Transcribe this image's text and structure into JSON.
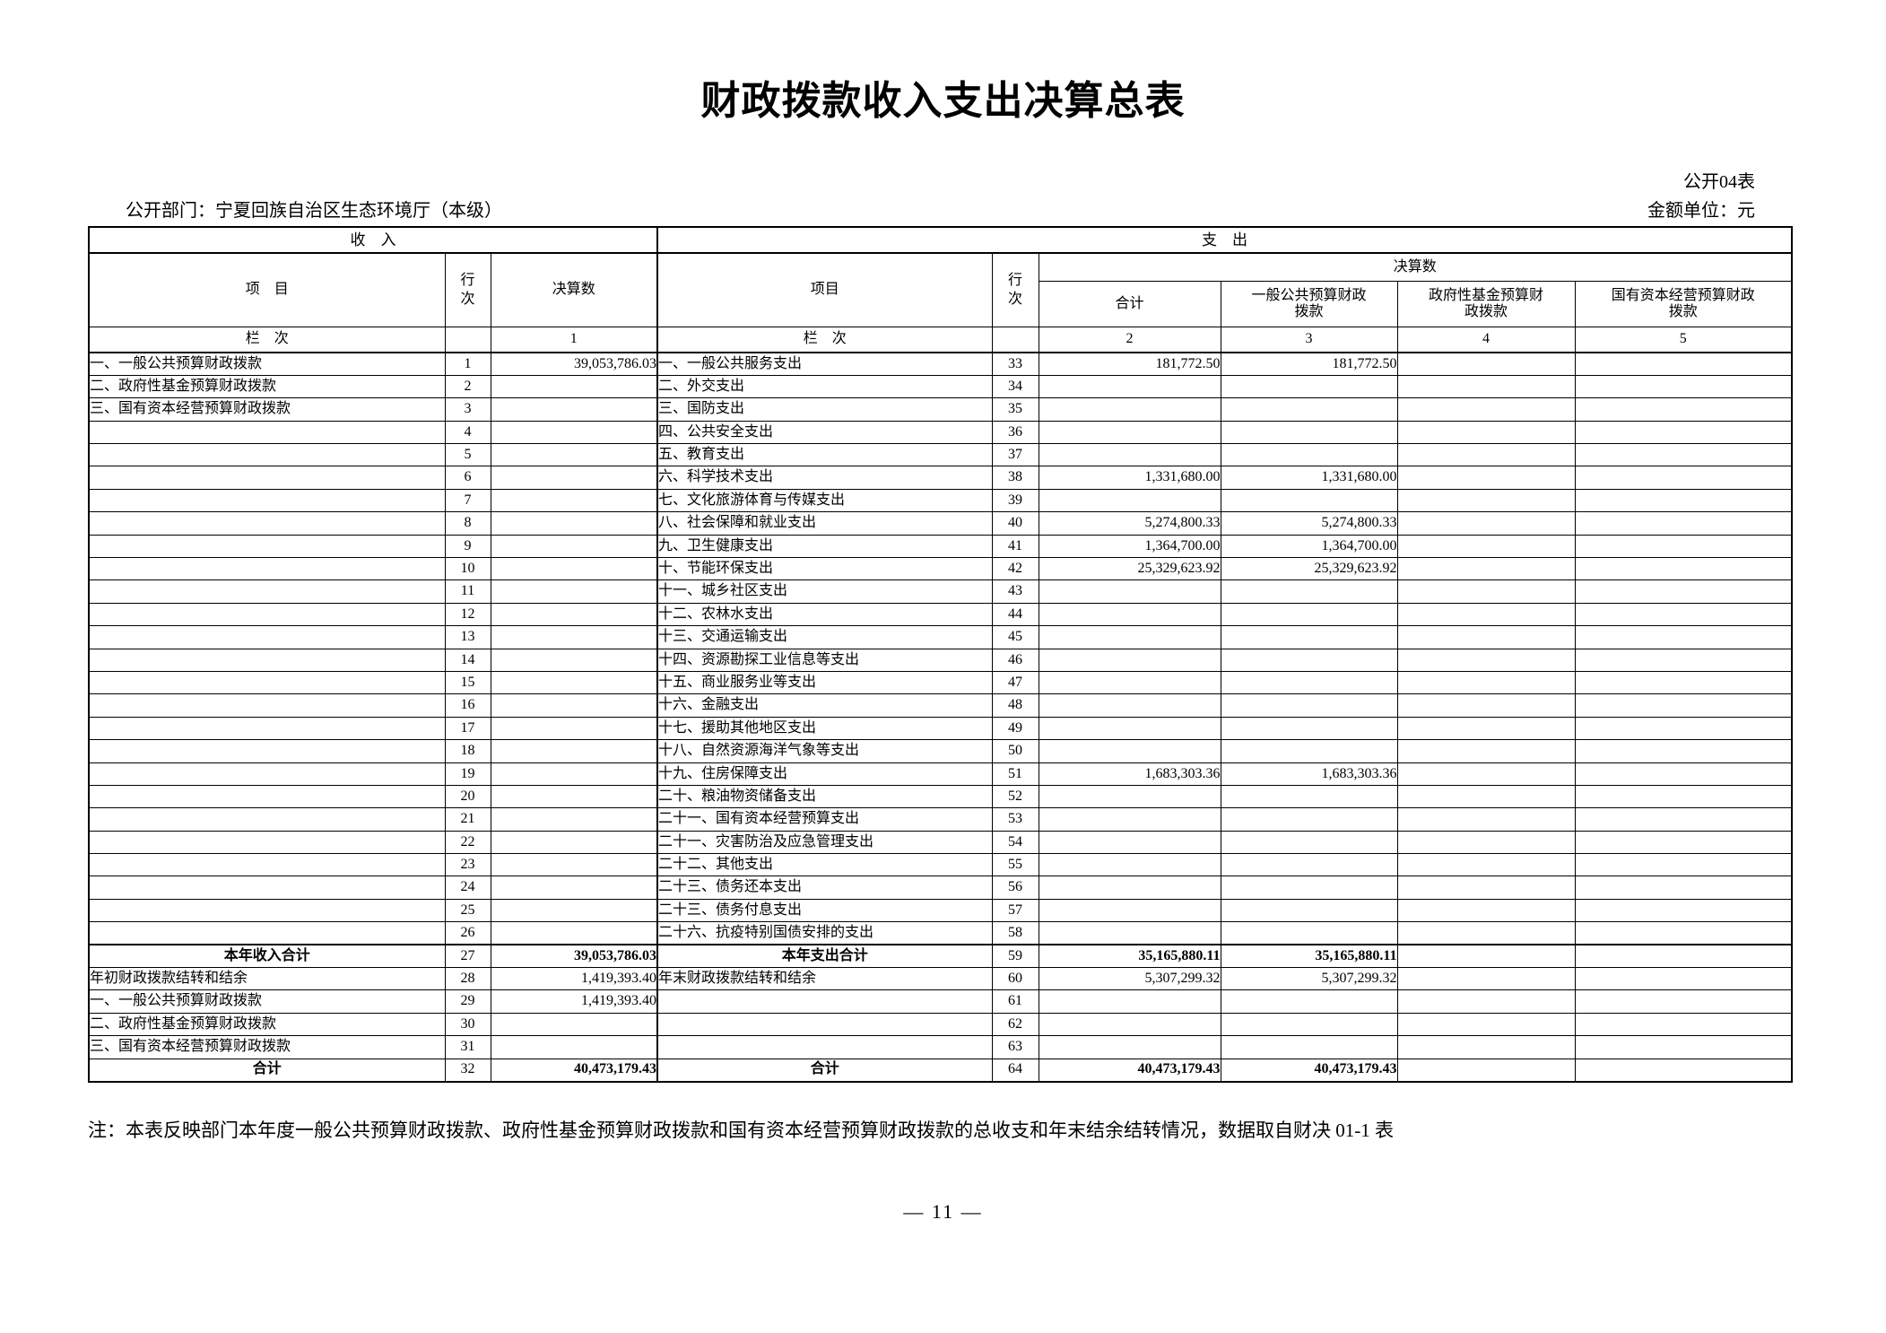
{
  "page": {
    "title": "财政拨款收入支出决算总表",
    "sheet_code": "公开04表",
    "department": "公开部门：宁夏回族自治区生态环境厅（本级）",
    "unit": "金额单位：元",
    "note": "注：本表反映部门本年度一般公共预算财政拨款、政府性基金预算财政拨款和国有资本经营预算财政拨款的总收支和年末结余结转情况，数据取自财决 01-1 表",
    "page_number": "— 11 —"
  },
  "table": {
    "income_header": "收　入",
    "expense_header": "支　出",
    "col_item_income": "项　目",
    "col_row_income": "行次",
    "col_amount_income": "决算数",
    "col_item_expense": "项目",
    "col_row_expense": "行次",
    "col_final_expense": "决算数",
    "col_total": "合计",
    "col_general": "一般公共预算财政\n拨款",
    "col_gov_fund": "政府性基金预算财\n政拨款",
    "col_state_capital": "国有资本经营预算财政\n拨款",
    "lanci": {
      "income_label": "栏　次",
      "income_col": "1",
      "expense_label": "栏　次",
      "expense_cols": [
        "2",
        "3",
        "4",
        "5"
      ]
    },
    "rows": [
      {
        "in": [
          "一、一般公共预算财政拨款",
          "1",
          "39,053,786.03"
        ],
        "out": [
          "一、一般公共服务支出",
          "33",
          "181,772.50",
          "181,772.50",
          "",
          ""
        ]
      },
      {
        "in": [
          "二、政府性基金预算财政拨款",
          "2",
          ""
        ],
        "out": [
          "二、外交支出",
          "34",
          "",
          "",
          "",
          ""
        ]
      },
      {
        "in": [
          "三、国有资本经营预算财政拨款",
          "3",
          ""
        ],
        "out": [
          "三、国防支出",
          "35",
          "",
          "",
          "",
          ""
        ]
      },
      {
        "in": [
          "",
          "4",
          ""
        ],
        "out": [
          "四、公共安全支出",
          "36",
          "",
          "",
          "",
          ""
        ]
      },
      {
        "in": [
          "",
          "5",
          ""
        ],
        "out": [
          "五、教育支出",
          "37",
          "",
          "",
          "",
          ""
        ]
      },
      {
        "in": [
          "",
          "6",
          ""
        ],
        "out": [
          "六、科学技术支出",
          "38",
          "1,331,680.00",
          "1,331,680.00",
          "",
          ""
        ]
      },
      {
        "in": [
          "",
          "7",
          ""
        ],
        "out": [
          "七、文化旅游体育与传媒支出",
          "39",
          "",
          "",
          "",
          ""
        ]
      },
      {
        "in": [
          "",
          "8",
          ""
        ],
        "out": [
          "八、社会保障和就业支出",
          "40",
          "5,274,800.33",
          "5,274,800.33",
          "",
          ""
        ]
      },
      {
        "in": [
          "",
          "9",
          ""
        ],
        "out": [
          "九、卫生健康支出",
          "41",
          "1,364,700.00",
          "1,364,700.00",
          "",
          ""
        ]
      },
      {
        "in": [
          "",
          "10",
          ""
        ],
        "out": [
          "十、节能环保支出",
          "42",
          "25,329,623.92",
          "25,329,623.92",
          "",
          ""
        ]
      },
      {
        "in": [
          "",
          "11",
          ""
        ],
        "out": [
          "十一、城乡社区支出",
          "43",
          "",
          "",
          "",
          ""
        ]
      },
      {
        "in": [
          "",
          "12",
          ""
        ],
        "out": [
          "十二、农林水支出",
          "44",
          "",
          "",
          "",
          ""
        ]
      },
      {
        "in": [
          "",
          "13",
          ""
        ],
        "out": [
          "十三、交通运输支出",
          "45",
          "",
          "",
          "",
          ""
        ]
      },
      {
        "in": [
          "",
          "14",
          ""
        ],
        "out": [
          "十四、资源勘探工业信息等支出",
          "46",
          "",
          "",
          "",
          ""
        ]
      },
      {
        "in": [
          "",
          "15",
          ""
        ],
        "out": [
          "十五、商业服务业等支出",
          "47",
          "",
          "",
          "",
          ""
        ]
      },
      {
        "in": [
          "",
          "16",
          ""
        ],
        "out": [
          "十六、金融支出",
          "48",
          "",
          "",
          "",
          ""
        ]
      },
      {
        "in": [
          "",
          "17",
          ""
        ],
        "out": [
          "十七、援助其他地区支出",
          "49",
          "",
          "",
          "",
          ""
        ]
      },
      {
        "in": [
          "",
          "18",
          ""
        ],
        "out": [
          "十八、自然资源海洋气象等支出",
          "50",
          "",
          "",
          "",
          ""
        ]
      },
      {
        "in": [
          "",
          "19",
          ""
        ],
        "out": [
          "十九、住房保障支出",
          "51",
          "1,683,303.36",
          "1,683,303.36",
          "",
          ""
        ]
      },
      {
        "in": [
          "",
          "20",
          ""
        ],
        "out": [
          "二十、粮油物资储备支出",
          "52",
          "",
          "",
          "",
          ""
        ]
      },
      {
        "in": [
          "",
          "21",
          ""
        ],
        "out": [
          "二十一、国有资本经营预算支出",
          "53",
          "",
          "",
          "",
          ""
        ]
      },
      {
        "in": [
          "",
          "22",
          ""
        ],
        "out": [
          "二十一、灾害防治及应急管理支出",
          "54",
          "",
          "",
          "",
          ""
        ]
      },
      {
        "in": [
          "",
          "23",
          ""
        ],
        "out": [
          "二十二、其他支出",
          "55",
          "",
          "",
          "",
          ""
        ]
      },
      {
        "in": [
          "",
          "24",
          ""
        ],
        "out": [
          "二十三、债务还本支出",
          "56",
          "",
          "",
          "",
          ""
        ]
      },
      {
        "in": [
          "",
          "25",
          ""
        ],
        "out": [
          "二十三、债务付息支出",
          "57",
          "",
          "",
          "",
          ""
        ]
      },
      {
        "in": [
          "",
          "26",
          ""
        ],
        "out": [
          "二十六、抗疫特别国债安排的支出",
          "58",
          "",
          "",
          "",
          ""
        ]
      },
      {
        "bold": true,
        "thick_top": true,
        "in": [
          "本年收入合计",
          "27",
          "39,053,786.03"
        ],
        "out": [
          "本年支出合计",
          "59",
          "35,165,880.11",
          "35,165,880.11",
          "",
          ""
        ]
      },
      {
        "in": [
          "年初财政拨款结转和结余",
          "28",
          "1,419,393.40"
        ],
        "out": [
          "年末财政拨款结转和结余",
          "60",
          "5,307,299.32",
          "5,307,299.32",
          "",
          ""
        ]
      },
      {
        "in": [
          "一、一般公共预算财政拨款",
          "29",
          "1,419,393.40"
        ],
        "out": [
          "",
          "61",
          "",
          "",
          "",
          ""
        ]
      },
      {
        "in": [
          "二、政府性基金预算财政拨款",
          "30",
          ""
        ],
        "out": [
          "",
          "62",
          "",
          "",
          "",
          ""
        ]
      },
      {
        "in": [
          "三、国有资本经营预算财政拨款",
          "31",
          ""
        ],
        "out": [
          "",
          "63",
          "",
          "",
          "",
          ""
        ]
      },
      {
        "bold": true,
        "in": [
          "合计",
          "32",
          "40,473,179.43"
        ],
        "out": [
          "合计",
          "64",
          "40,473,179.43",
          "40,473,179.43",
          "",
          ""
        ]
      }
    ]
  }
}
